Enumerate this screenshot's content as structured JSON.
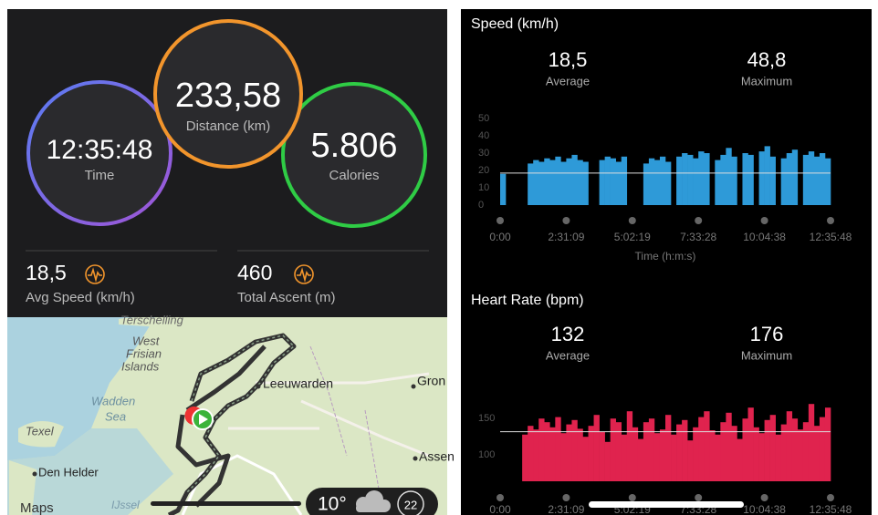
{
  "summary": {
    "time": {
      "value": "12:35:48",
      "label": "Time"
    },
    "distance": {
      "value": "233,58",
      "label": "Distance (km)"
    },
    "calories": {
      "value": "5.806",
      "label": "Calories"
    }
  },
  "stats": [
    {
      "value": "18,5",
      "label": "Avg Speed (km/h)"
    },
    {
      "value": "460",
      "label": "Total Ascent (m)"
    }
  ],
  "map": {
    "labels": [
      "Terschelling",
      "West",
      "Frisian",
      "Islands",
      "Wadden",
      "Sea",
      "Texel",
      "Den Helder",
      "Leeuwarden",
      "Gron",
      "Assen",
      "IJssel"
    ],
    "brand": "Maps",
    "temperature": "10°",
    "badge": "22"
  },
  "speed_chart": {
    "type": "bar",
    "title": "Speed (km/h)",
    "average": {
      "value": "18,5",
      "label": "Average"
    },
    "maximum": {
      "value": "48,8",
      "label": "Maximum"
    },
    "ylim": [
      0,
      50
    ],
    "yticks": [
      0,
      10,
      20,
      30,
      40,
      50
    ],
    "avg_line": 18.5,
    "xticks": [
      "0:00",
      "2:31:09",
      "5:02:19",
      "7:33:28",
      "10:04:38",
      "12:35:48"
    ],
    "x_label": "Time (h:m:s)",
    "color": "#2e9ad8",
    "values": [
      18,
      0,
      0,
      0,
      0,
      24,
      26,
      25,
      27,
      26,
      28,
      25,
      27,
      29,
      26,
      25,
      0,
      0,
      26,
      28,
      27,
      25,
      28,
      0,
      0,
      0,
      24,
      27,
      26,
      28,
      25,
      0,
      28,
      30,
      29,
      27,
      31,
      30,
      0,
      26,
      29,
      33,
      28,
      0,
      30,
      29,
      0,
      31,
      34,
      28,
      0,
      27,
      30,
      32,
      0,
      29,
      31,
      28,
      30,
      27
    ]
  },
  "heart_chart": {
    "type": "bar",
    "title": "Heart Rate (bpm)",
    "average": {
      "value": "132",
      "label": "Average"
    },
    "maximum": {
      "value": "176",
      "label": "Maximum"
    },
    "ylim": [
      64,
      180
    ],
    "yticks": [
      100,
      150
    ],
    "avg_line": 132,
    "xticks": [
      "0:00",
      "2:31:09",
      "5:02:19",
      "7:33:28",
      "10:04:38",
      "12:35:48"
    ],
    "color": "#e0234e",
    "values": [
      null,
      null,
      null,
      null,
      128,
      140,
      135,
      150,
      145,
      138,
      152,
      130,
      142,
      148,
      136,
      125,
      140,
      155,
      132,
      118,
      150,
      145,
      128,
      160,
      138,
      122,
      145,
      150,
      130,
      135,
      155,
      128,
      142,
      148,
      120,
      138,
      152,
      160,
      134,
      128,
      145,
      158,
      140,
      122,
      150,
      165,
      138,
      130,
      148,
      155,
      128,
      142,
      160,
      150,
      135,
      145,
      170,
      140,
      152,
      165
    ]
  }
}
